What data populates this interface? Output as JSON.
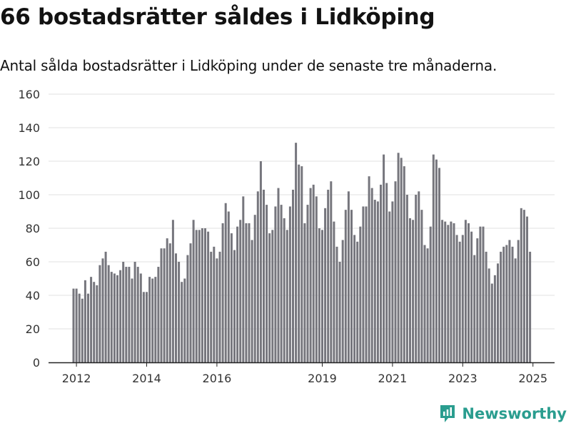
{
  "title": "66 bostadsrätter såldes i Lidköping",
  "subtitle": "Antal sålda bostadsrätter i Lidköping under de senaste tre månaderna.",
  "brand": {
    "name": "Newsworthy",
    "color": "#2a9d8f"
  },
  "chart_data": {
    "type": "bar",
    "xlabel": "",
    "ylabel": "",
    "ylim": [
      0,
      160
    ],
    "yticks": [
      0,
      20,
      40,
      60,
      80,
      100,
      120,
      140,
      160
    ],
    "grid": true,
    "bar_color": "#76767d",
    "highlight_color": "#2a9d8f",
    "x_ticks": [
      {
        "label": "2012",
        "index": 1
      },
      {
        "label": "2014",
        "index": 25
      },
      {
        "label": "2016",
        "index": 49
      },
      {
        "label": "2019",
        "index": 85
      },
      {
        "label": "2021",
        "index": 109
      },
      {
        "label": "2023",
        "index": 133
      },
      {
        "label": "2025",
        "index": 157
      }
    ],
    "highlight": {
      "index": 157,
      "label": "66"
    },
    "values": [
      44,
      44,
      41,
      38,
      49,
      41,
      51,
      48,
      46,
      58,
      62,
      66,
      58,
      54,
      53,
      52,
      55,
      60,
      57,
      57,
      50,
      60,
      57,
      53,
      42,
      42,
      51,
      50,
      51,
      57,
      68,
      68,
      74,
      71,
      85,
      65,
      60,
      48,
      50,
      64,
      71,
      85,
      79,
      79,
      80,
      80,
      78,
      66,
      69,
      62,
      66,
      83,
      95,
      90,
      77,
      67,
      81,
      85,
      99,
      83,
      83,
      73,
      88,
      102,
      120,
      103,
      94,
      77,
      79,
      93,
      104,
      94,
      86,
      79,
      93,
      103,
      131,
      118,
      117,
      83,
      94,
      104,
      106,
      99,
      80,
      79,
      92,
      103,
      108,
      84,
      69,
      60,
      73,
      91,
      102,
      91,
      76,
      72,
      81,
      93,
      93,
      111,
      104,
      97,
      96,
      106,
      124,
      107,
      90,
      96,
      108,
      125,
      122,
      117,
      100,
      86,
      85,
      100,
      102,
      91,
      70,
      68,
      81,
      124,
      121,
      116,
      85,
      84,
      82,
      84,
      83,
      76,
      72,
      76,
      85,
      83,
      78,
      64,
      74,
      81,
      81,
      66,
      56,
      47,
      52,
      59,
      66,
      69,
      70,
      73,
      69,
      62,
      73,
      92,
      91,
      87,
      66
    ]
  }
}
